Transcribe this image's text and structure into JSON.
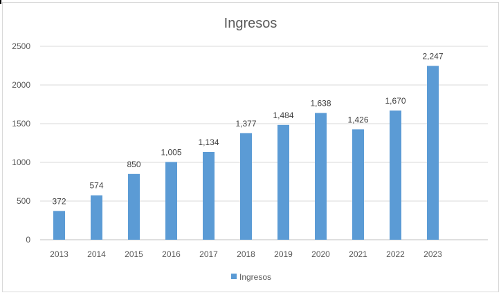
{
  "chart_data": {
    "type": "bar",
    "title": "Ingresos",
    "categories": [
      "2013",
      "2014",
      "2015",
      "2016",
      "2017",
      "2018",
      "2019",
      "2020",
      "2021",
      "2022",
      "2023"
    ],
    "series": [
      {
        "name": "Ingresos",
        "color": "#5b9bd5",
        "values": [
          372,
          574,
          850,
          1005,
          1134,
          1377,
          1484,
          1638,
          1426,
          1670,
          2247
        ],
        "labels": [
          "372",
          "574",
          "850",
          "1,005",
          "1,134",
          "1,377",
          "1,484",
          "1,638",
          "1,426",
          "1,670",
          "2,247"
        ]
      }
    ],
    "xlabel": "",
    "ylabel": "",
    "ylim": [
      0,
      2500
    ],
    "yticks": [
      "0",
      "500",
      "1000",
      "1500",
      "2000",
      "2500"
    ],
    "grid": true,
    "legend_position": "bottom"
  }
}
